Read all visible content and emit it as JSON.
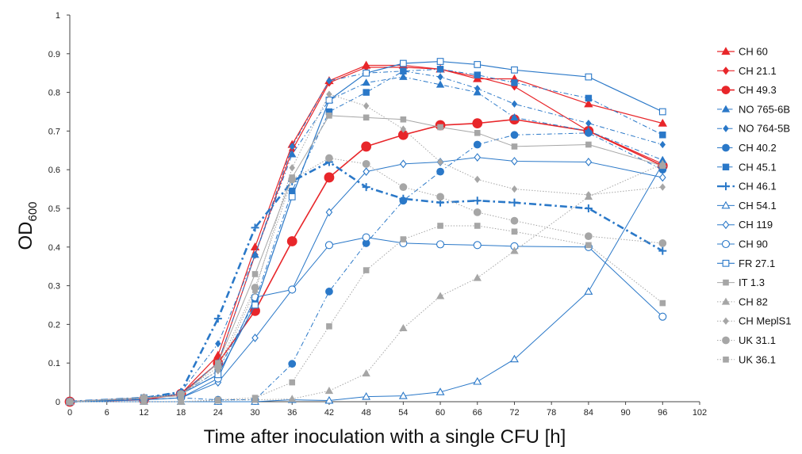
{
  "chart_data": {
    "type": "line",
    "title": "",
    "xlabel": "Time after inoculation with a single CFU [h]",
    "ylabel": "OD",
    "ylabel_sub": "600",
    "xlim": [
      0,
      102
    ],
    "ylim": [
      0,
      1
    ],
    "xticks": [
      0,
      6,
      12,
      18,
      24,
      30,
      36,
      42,
      48,
      54,
      60,
      66,
      72,
      78,
      84,
      90,
      96,
      102
    ],
    "yticks": [
      0,
      0.1,
      0.2,
      0.3,
      0.4,
      0.5,
      0.6,
      0.7,
      0.8,
      0.9,
      1
    ],
    "ytick_labels": [
      "0",
      "0.1",
      "0.2",
      "0.3",
      "0.4",
      "0.5",
      "0.6",
      "0.7",
      "0.8",
      "0.9",
      "1"
    ],
    "grid": false,
    "legend_position": "right",
    "x": [
      0,
      12,
      18,
      24,
      30,
      36,
      42,
      48,
      54,
      60,
      66,
      72,
      84,
      96
    ],
    "series": [
      {
        "name": "CH 60",
        "color": "#e8262a",
        "marker": "triangle",
        "fill": "filled",
        "dash": "solid",
        "width": 1.2,
        "msize": 5,
        "values": [
          0,
          0.01,
          0.02,
          0.12,
          0.4,
          0.665,
          0.83,
          0.87,
          0.87,
          0.86,
          0.835,
          0.835,
          0.77,
          0.72
        ]
      },
      {
        "name": "CH 21.1",
        "color": "#e8262a",
        "marker": "diamond",
        "fill": "filled",
        "dash": "solid",
        "width": 1.2,
        "msize": 4.5,
        "values": [
          0,
          0.01,
          0.02,
          0.1,
          0.38,
          0.65,
          0.825,
          0.865,
          0.865,
          0.86,
          0.84,
          0.815,
          0.7,
          0.615
        ]
      },
      {
        "name": "CH 49.3",
        "color": "#e8262a",
        "marker": "circle",
        "fill": "filled",
        "dash": "solid",
        "width": 1.6,
        "msize": 6,
        "values": [
          0,
          0.005,
          0.02,
          0.1,
          0.235,
          0.415,
          0.58,
          0.66,
          0.69,
          0.715,
          0.72,
          0.73,
          0.7,
          0.61
        ]
      },
      {
        "name": "NO 765-6B",
        "color": "#2a78c8",
        "marker": "triangle",
        "fill": "filled",
        "dash": "dashdot",
        "width": 1,
        "msize": 4.5,
        "values": [
          0,
          0.01,
          0.02,
          0.1,
          0.38,
          0.64,
          0.78,
          0.825,
          0.84,
          0.82,
          0.8,
          0.735,
          0.7,
          0.625
        ]
      },
      {
        "name": "NO 764-5B",
        "color": "#2a78c8",
        "marker": "diamond",
        "fill": "filled",
        "dash": "dashdot",
        "width": 1,
        "msize": 4,
        "values": [
          0,
          0.01,
          0.025,
          0.15,
          0.38,
          0.66,
          0.83,
          0.85,
          0.855,
          0.84,
          0.81,
          0.77,
          0.72,
          0.665
        ]
      },
      {
        "name": "CH 40.2",
        "color": "#2a78c8",
        "marker": "circle",
        "fill": "filled",
        "dash": "dashdot",
        "width": 1,
        "msize": 4.5,
        "values": [
          0,
          0.005,
          0.01,
          0.005,
          0.005,
          0.098,
          0.285,
          0.41,
          0.52,
          0.595,
          0.665,
          0.69,
          0.695,
          0.6
        ]
      },
      {
        "name": "CH 45.1",
        "color": "#2a78c8",
        "marker": "square",
        "fill": "filled",
        "dash": "dashdot",
        "width": 1,
        "msize": 4.5,
        "values": [
          0,
          0.01,
          0.02,
          0.08,
          0.26,
          0.545,
          0.75,
          0.8,
          0.855,
          0.86,
          0.845,
          0.825,
          0.785,
          0.69
        ]
      },
      {
        "name": "CH 46.1",
        "color": "#2a78c8",
        "marker": "plus",
        "fill": "filled",
        "dash": "dashdot-bold",
        "width": 2.6,
        "msize": 5,
        "values": [
          0,
          0.01,
          0.025,
          0.215,
          0.45,
          0.57,
          0.62,
          0.555,
          0.525,
          0.515,
          0.52,
          0.515,
          0.5,
          0.39
        ]
      },
      {
        "name": "CH 54.1",
        "color": "#2a78c8",
        "marker": "triangle",
        "fill": "open",
        "dash": "solid",
        "width": 1,
        "msize": 4.5,
        "values": [
          0,
          0,
          0,
          0,
          0,
          0.005,
          0.003,
          0.013,
          0.015,
          0.025,
          0.052,
          0.11,
          0.285,
          0.615
        ]
      },
      {
        "name": "CH 119",
        "color": "#2a78c8",
        "marker": "diamond",
        "fill": "open",
        "dash": "solid",
        "width": 1,
        "msize": 4.5,
        "values": [
          0,
          0.005,
          0.01,
          0.05,
          0.165,
          0.29,
          0.49,
          0.595,
          0.615,
          0.62,
          0.632,
          0.622,
          0.62,
          0.58
        ]
      },
      {
        "name": "CH 90",
        "color": "#2a78c8",
        "marker": "circle",
        "fill": "open",
        "dash": "solid",
        "width": 1,
        "msize": 4.5,
        "values": [
          0,
          0.005,
          0.01,
          0.06,
          0.27,
          0.29,
          0.405,
          0.425,
          0.41,
          0.407,
          0.405,
          0.402,
          0.4,
          0.22
        ]
      },
      {
        "name": "FR 27.1",
        "color": "#2a78c8",
        "marker": "square",
        "fill": "open",
        "dash": "solid",
        "width": 1.2,
        "msize": 4.5,
        "values": [
          0,
          0.01,
          0.02,
          0.07,
          0.25,
          0.53,
          0.78,
          0.85,
          0.875,
          0.88,
          0.872,
          0.858,
          0.84,
          0.75
        ]
      },
      {
        "name": "IT 1.3",
        "color": "#a6a6a6",
        "marker": "square",
        "fill": "filled",
        "dash": "solid",
        "width": 1,
        "msize": 4,
        "values": [
          0,
          0.01,
          0.015,
          0.1,
          0.33,
          0.58,
          0.74,
          0.735,
          0.73,
          0.71,
          0.695,
          0.66,
          0.665,
          0.61
        ]
      },
      {
        "name": "CH 82",
        "color": "#a6a6a6",
        "marker": "triangle",
        "fill": "filled",
        "dash": "dotted",
        "width": 1,
        "msize": 4.5,
        "values": [
          0,
          0,
          0,
          0.003,
          0.005,
          0.007,
          0.028,
          0.073,
          0.19,
          0.273,
          0.32,
          0.39,
          0.53,
          0.615
        ]
      },
      {
        "name": "CH MeplS1",
        "color": "#a6a6a6",
        "marker": "diamond",
        "fill": "filled",
        "dash": "dotted",
        "width": 1,
        "msize": 4,
        "values": [
          0,
          0.01,
          0.02,
          0.08,
          0.285,
          0.605,
          0.795,
          0.765,
          0.705,
          0.62,
          0.575,
          0.55,
          0.535,
          0.555
        ]
      },
      {
        "name": "UK 31.1",
        "color": "#a6a6a6",
        "marker": "circle",
        "fill": "filled",
        "dash": "dotted",
        "width": 1,
        "msize": 4.5,
        "values": [
          0,
          0.01,
          0.02,
          0.09,
          0.295,
          0.575,
          0.63,
          0.615,
          0.555,
          0.53,
          0.49,
          0.468,
          0.428,
          0.41
        ]
      },
      {
        "name": "UK 36.1",
        "color": "#a6a6a6",
        "marker": "square",
        "fill": "filled",
        "dash": "dotted",
        "width": 1,
        "msize": 4,
        "values": [
          0,
          0,
          0,
          0.005,
          0.01,
          0.05,
          0.195,
          0.34,
          0.42,
          0.455,
          0.455,
          0.44,
          0.405,
          0.255
        ]
      }
    ]
  }
}
